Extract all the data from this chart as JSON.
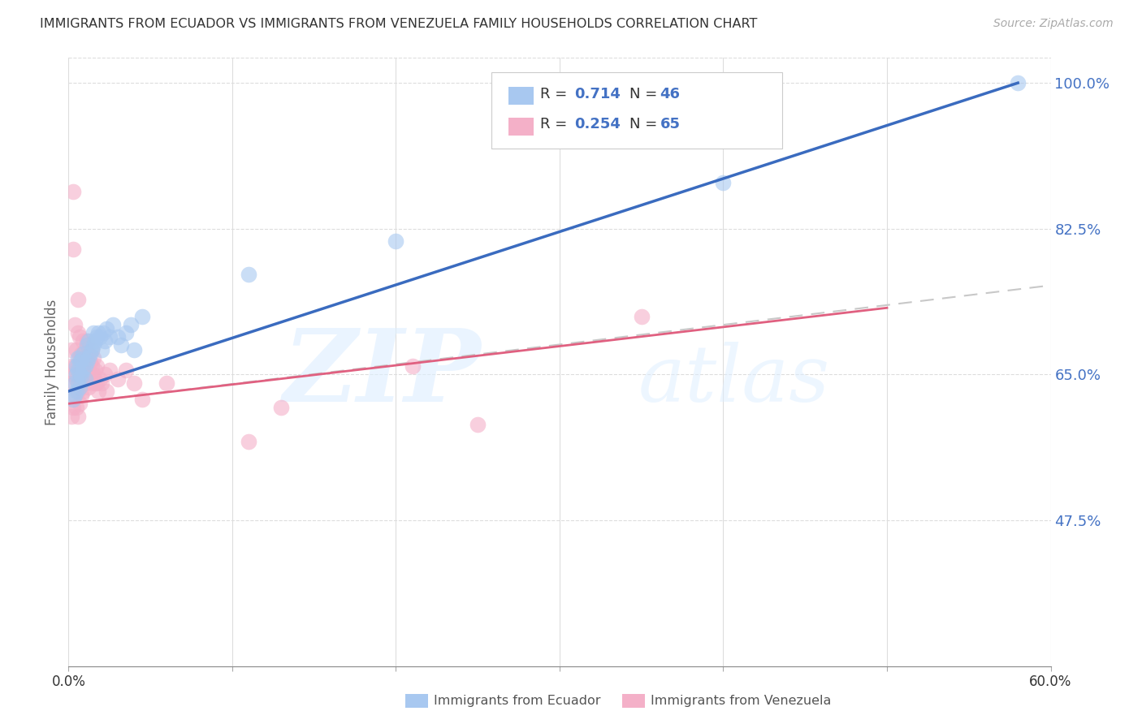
{
  "title": "IMMIGRANTS FROM ECUADOR VS IMMIGRANTS FROM VENEZUELA FAMILY HOUSEHOLDS CORRELATION CHART",
  "source": "Source: ZipAtlas.com",
  "ylabel": "Family Households",
  "yticks": [
    "100.0%",
    "82.5%",
    "65.0%",
    "47.5%"
  ],
  "ytick_vals": [
    1.0,
    0.825,
    0.65,
    0.475
  ],
  "legend_ecuador": {
    "R": "0.714",
    "N": "46"
  },
  "legend_venezuela": {
    "R": "0.254",
    "N": "65"
  },
  "ecuador_color": "#a8c8f0",
  "venezuela_color": "#f4b0c8",
  "ecuador_line_color": "#3a6bbf",
  "venezuela_line_color": "#e06080",
  "dashed_line_color": "#c8c8c8",
  "watermark_zip": "ZIP",
  "watermark_atlas": "atlas",
  "xmin": 0.0,
  "xmax": 0.6,
  "ymin": 0.3,
  "ymax": 1.03,
  "ecuador_points": [
    [
      0.003,
      0.62
    ],
    [
      0.004,
      0.625
    ],
    [
      0.004,
      0.64
    ],
    [
      0.005,
      0.63
    ],
    [
      0.005,
      0.65
    ],
    [
      0.005,
      0.66
    ],
    [
      0.006,
      0.64
    ],
    [
      0.006,
      0.655
    ],
    [
      0.006,
      0.67
    ],
    [
      0.007,
      0.635
    ],
    [
      0.007,
      0.65
    ],
    [
      0.007,
      0.665
    ],
    [
      0.008,
      0.648
    ],
    [
      0.008,
      0.668
    ],
    [
      0.009,
      0.655
    ],
    [
      0.009,
      0.675
    ],
    [
      0.01,
      0.66
    ],
    [
      0.01,
      0.645
    ],
    [
      0.011,
      0.665
    ],
    [
      0.011,
      0.685
    ],
    [
      0.012,
      0.67
    ],
    [
      0.012,
      0.69
    ],
    [
      0.013,
      0.675
    ],
    [
      0.014,
      0.68
    ],
    [
      0.015,
      0.685
    ],
    [
      0.015,
      0.7
    ],
    [
      0.016,
      0.69
    ],
    [
      0.017,
      0.695
    ],
    [
      0.018,
      0.7
    ],
    [
      0.019,
      0.695
    ],
    [
      0.02,
      0.68
    ],
    [
      0.021,
      0.7
    ],
    [
      0.022,
      0.69
    ],
    [
      0.023,
      0.705
    ],
    [
      0.025,
      0.695
    ],
    [
      0.027,
      0.71
    ],
    [
      0.03,
      0.695
    ],
    [
      0.032,
      0.685
    ],
    [
      0.035,
      0.7
    ],
    [
      0.038,
      0.71
    ],
    [
      0.04,
      0.68
    ],
    [
      0.045,
      0.72
    ],
    [
      0.11,
      0.77
    ],
    [
      0.2,
      0.81
    ],
    [
      0.4,
      0.88
    ],
    [
      0.58,
      1.0
    ]
  ],
  "venezuela_points": [
    [
      0.001,
      0.64
    ],
    [
      0.002,
      0.6
    ],
    [
      0.002,
      0.66
    ],
    [
      0.002,
      0.68
    ],
    [
      0.003,
      0.61
    ],
    [
      0.003,
      0.65
    ],
    [
      0.003,
      0.8
    ],
    [
      0.003,
      0.87
    ],
    [
      0.004,
      0.625
    ],
    [
      0.004,
      0.66
    ],
    [
      0.004,
      0.71
    ],
    [
      0.005,
      0.61
    ],
    [
      0.005,
      0.645
    ],
    [
      0.005,
      0.68
    ],
    [
      0.006,
      0.6
    ],
    [
      0.006,
      0.63
    ],
    [
      0.006,
      0.66
    ],
    [
      0.006,
      0.7
    ],
    [
      0.006,
      0.74
    ],
    [
      0.007,
      0.615
    ],
    [
      0.007,
      0.645
    ],
    [
      0.007,
      0.67
    ],
    [
      0.007,
      0.695
    ],
    [
      0.008,
      0.625
    ],
    [
      0.008,
      0.65
    ],
    [
      0.008,
      0.675
    ],
    [
      0.009,
      0.63
    ],
    [
      0.009,
      0.66
    ],
    [
      0.009,
      0.69
    ],
    [
      0.01,
      0.64
    ],
    [
      0.01,
      0.66
    ],
    [
      0.01,
      0.68
    ],
    [
      0.011,
      0.65
    ],
    [
      0.011,
      0.67
    ],
    [
      0.011,
      0.69
    ],
    [
      0.012,
      0.635
    ],
    [
      0.012,
      0.655
    ],
    [
      0.012,
      0.675
    ],
    [
      0.013,
      0.645
    ],
    [
      0.013,
      0.665
    ],
    [
      0.014,
      0.64
    ],
    [
      0.014,
      0.66
    ],
    [
      0.014,
      0.68
    ],
    [
      0.015,
      0.65
    ],
    [
      0.015,
      0.67
    ],
    [
      0.016,
      0.64
    ],
    [
      0.016,
      0.655
    ],
    [
      0.017,
      0.64
    ],
    [
      0.017,
      0.66
    ],
    [
      0.018,
      0.63
    ],
    [
      0.019,
      0.645
    ],
    [
      0.02,
      0.64
    ],
    [
      0.022,
      0.65
    ],
    [
      0.023,
      0.63
    ],
    [
      0.025,
      0.655
    ],
    [
      0.03,
      0.645
    ],
    [
      0.035,
      0.655
    ],
    [
      0.04,
      0.64
    ],
    [
      0.045,
      0.62
    ],
    [
      0.06,
      0.64
    ],
    [
      0.11,
      0.57
    ],
    [
      0.13,
      0.61
    ],
    [
      0.21,
      0.66
    ],
    [
      0.25,
      0.59
    ],
    [
      0.35,
      0.72
    ]
  ]
}
